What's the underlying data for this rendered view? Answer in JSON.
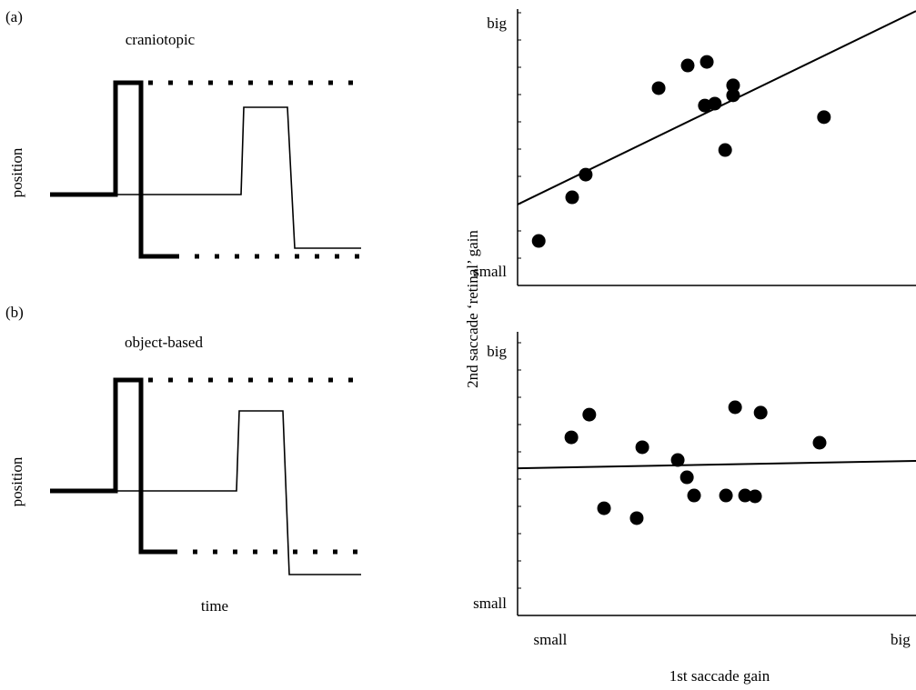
{
  "panels": [
    {
      "label": "(a)",
      "title": "craniotopic",
      "ylabel": "position"
    },
    {
      "label": "(b)",
      "title": "object-based",
      "ylabel": "position",
      "xlabel": "time"
    }
  ],
  "y_label": "2nd saccade ‘retinal’ gain",
  "x_label": "1st saccade gain",
  "chart_data": [
    {
      "type": "scatter",
      "x": [
        5.3,
        13.7,
        17.1,
        35.4,
        42.7,
        47.5,
        54.1,
        54.1,
        47.0,
        49.5,
        52.1,
        76.9
      ],
      "y": [
        16.1,
        31.9,
        40.1,
        71.4,
        79.6,
        80.9,
        72.4,
        68.8,
        65.1,
        65.8,
        49.0,
        60.9
      ],
      "trend": [
        29.3,
        99.3
      ],
      "xlim": [
        0,
        100
      ],
      "ylim": [
        0,
        100
      ],
      "yticks": [
        {
          "value": 4.6,
          "label": "small"
        },
        {
          "value": 94.4,
          "label": "big"
        }
      ],
      "color": "#000000"
    },
    {
      "type": "scatter",
      "x": [
        13.5,
        18.0,
        21.7,
        29.9,
        31.3,
        40.2,
        42.5,
        44.3,
        52.3,
        54.6,
        57.1,
        59.6,
        61.0,
        75.8
      ],
      "y": [
        62.8,
        70.8,
        37.8,
        34.3,
        59.3,
        54.8,
        48.7,
        42.3,
        42.3,
        73.4,
        42.3,
        42.0,
        71.5,
        60.9
      ],
      "trend": [
        51.9,
        54.5
      ],
      "xlim": [
        0,
        100
      ],
      "ylim": [
        0,
        100
      ],
      "yticks": [
        {
          "value": 3.8,
          "label": "small"
        },
        {
          "value": 92.6,
          "label": "big"
        }
      ],
      "xticks": [
        {
          "value": 8.2,
          "label": "small"
        },
        {
          "value": 96.1,
          "label": "big"
        }
      ],
      "color": "#000000"
    }
  ]
}
